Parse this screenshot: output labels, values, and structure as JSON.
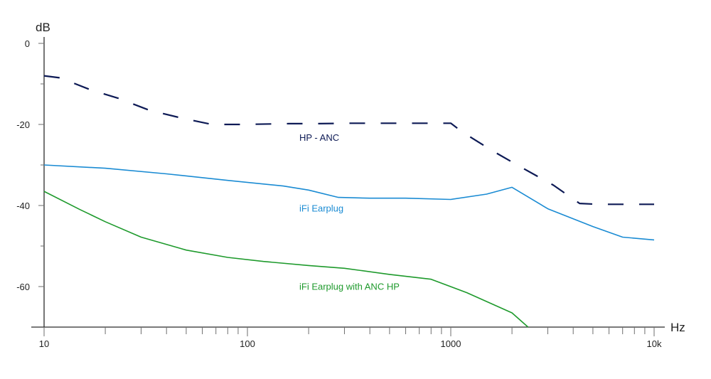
{
  "chart_data": {
    "type": "line",
    "title": "",
    "xlabel": "Hz",
    "ylabel": "dB",
    "x_scale": "log",
    "xlim": [
      10,
      10000
    ],
    "ylim": [
      -70,
      0
    ],
    "x_tick_labels": [
      {
        "value": 10,
        "label": "10"
      },
      {
        "value": 100,
        "label": "100"
      },
      {
        "value": 1000,
        "label": "1000"
      },
      {
        "value": 10000,
        "label": "10k"
      }
    ],
    "y_tick_labels": [
      {
        "value": 0,
        "label": "0"
      },
      {
        "value": -20,
        "label": "-20"
      },
      {
        "value": -40,
        "label": "-40"
      },
      {
        "value": -60,
        "label": "-60"
      }
    ],
    "y_minor_ticks": [
      -10,
      -30,
      -50
    ],
    "grid": false,
    "legend": "none",
    "series": [
      {
        "name": "HP - ANC",
        "color": "#0d1a55",
        "dashed": true,
        "label_at": {
          "x": 180,
          "y": -24
        },
        "x": [
          10,
          12,
          17,
          23,
          33,
          48,
          67,
          95,
          160,
          220,
          320,
          450,
          700,
          1000,
          1150,
          1600,
          2300,
          3200,
          4300,
          5300,
          6200,
          8000,
          10000
        ],
        "y": [
          -8,
          -8.5,
          -11.5,
          -13.5,
          -16.5,
          -18.5,
          -20,
          -20,
          -19.8,
          -19.8,
          -19.7,
          -19.7,
          -19.7,
          -19.7,
          -22,
          -26.5,
          -31,
          -35,
          -39.5,
          -39.7,
          -39.7,
          -39.7,
          -39.7
        ]
      },
      {
        "name": "iFi Earplug",
        "color": "#1a8bd3",
        "dashed": false,
        "label_at": {
          "x": 180,
          "y": -41.5
        },
        "x": [
          10,
          20,
          40,
          80,
          150,
          200,
          280,
          400,
          600,
          1000,
          1500,
          2000,
          3000,
          5000,
          7000,
          10000
        ],
        "y": [
          -30,
          -30.8,
          -32.2,
          -33.8,
          -35.2,
          -36.2,
          -38,
          -38.2,
          -38.2,
          -38.5,
          -37.2,
          -35.5,
          -40.8,
          -45.2,
          -47.8,
          -48.5
        ]
      },
      {
        "name": "iFi Earplug with ANC HP",
        "color": "#1e9a2c",
        "dashed": false,
        "label_at": {
          "x": 180,
          "y": -60.8
        },
        "x": [
          10,
          15,
          20,
          30,
          50,
          80,
          120,
          200,
          300,
          500,
          800,
          1200,
          2000,
          2400
        ],
        "y": [
          -36.5,
          -41,
          -44,
          -47.8,
          -51,
          -52.8,
          -53.8,
          -54.8,
          -55.5,
          -57,
          -58.2,
          -61.5,
          -66.5,
          -70
        ]
      }
    ]
  }
}
